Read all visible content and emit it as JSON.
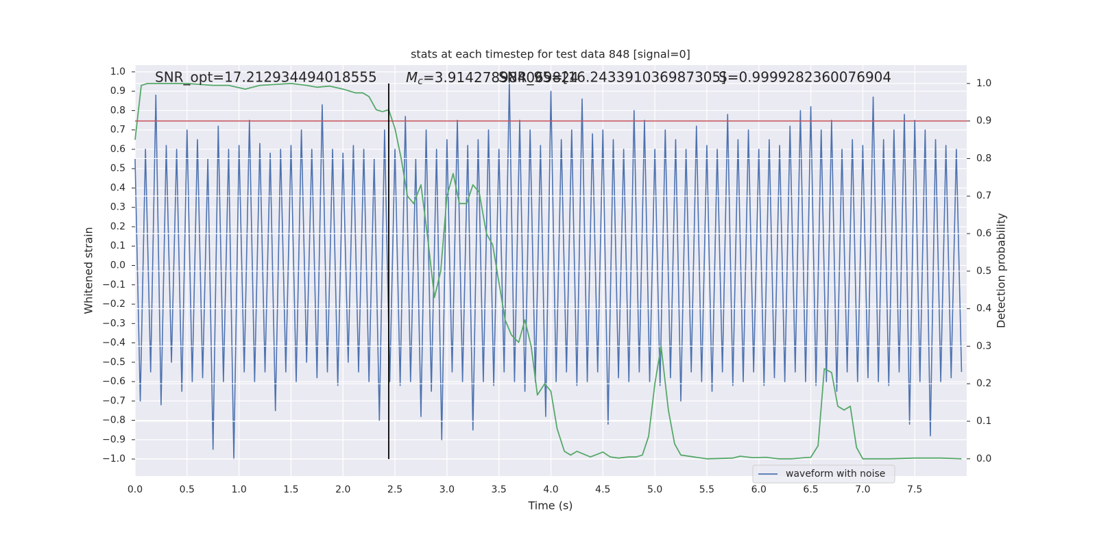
{
  "chart_data": {
    "type": "line",
    "title": "stats at each timestep for test data 848 [signal=0]",
    "xlabel": "Time (s)",
    "ylabel": "Whitened strain",
    "y2label": "Detection probability",
    "annotations": [
      "SNR_opt=17.212934494018555",
      {
        "italic": "M",
        "sub": "c",
        "rest": "=3.914278984069824"
      },
      "SNR_95=[16.243391036987305]",
      "S=0.9999282360076904"
    ],
    "xlim": [
      0,
      8
    ],
    "ylim": [
      -1.088,
      1.035
    ],
    "y2lim": [
      -0.046,
      1.049
    ],
    "grid": true,
    "legend": "lower right",
    "background": "#eaeaf2",
    "xticks": [
      {
        "value": 0,
        "label": "0.0"
      },
      {
        "value": 0.5,
        "label": "0.5"
      },
      {
        "value": 1,
        "label": "1.0"
      },
      {
        "value": 1.5,
        "label": "1.5"
      },
      {
        "value": 2,
        "label": "2.0"
      },
      {
        "value": 2.5,
        "label": "2.5"
      },
      {
        "value": 3,
        "label": "3.0"
      },
      {
        "value": 3.5,
        "label": "3.5"
      },
      {
        "value": 4,
        "label": "4.0"
      },
      {
        "value": 4.5,
        "label": "4.5"
      },
      {
        "value": 5,
        "label": "5.0"
      },
      {
        "value": 5.5,
        "label": "5.5"
      },
      {
        "value": 6,
        "label": "6.0"
      },
      {
        "value": 6.5,
        "label": "6.5"
      },
      {
        "value": 7,
        "label": "7.0"
      },
      {
        "value": 7.5,
        "label": "7.5"
      }
    ],
    "yticks": [
      {
        "value": -1,
        "label": "−1.0"
      },
      {
        "value": -0.9,
        "label": "−0.9"
      },
      {
        "value": -0.8,
        "label": "−0.8"
      },
      {
        "value": -0.7,
        "label": "−0.7"
      },
      {
        "value": -0.6,
        "label": "−0.6"
      },
      {
        "value": -0.5,
        "label": "−0.5"
      },
      {
        "value": -0.4,
        "label": "−0.4"
      },
      {
        "value": -0.3,
        "label": "−0.3"
      },
      {
        "value": -0.2,
        "label": "−0.2"
      },
      {
        "value": -0.1,
        "label": "−0.1"
      },
      {
        "value": 0,
        "label": "0.0"
      },
      {
        "value": 0.1,
        "label": "0.1"
      },
      {
        "value": 0.2,
        "label": "0.2"
      },
      {
        "value": 0.3,
        "label": "0.3"
      },
      {
        "value": 0.4,
        "label": "0.4"
      },
      {
        "value": 0.5,
        "label": "0.5"
      },
      {
        "value": 0.6,
        "label": "0.6"
      },
      {
        "value": 0.7,
        "label": "0.7"
      },
      {
        "value": 0.8,
        "label": "0.8"
      },
      {
        "value": 0.9,
        "label": "0.9"
      },
      {
        "value": 1,
        "label": "1.0"
      }
    ],
    "y2ticks": [
      {
        "value": 0,
        "label": "0.0"
      },
      {
        "value": 0.1,
        "label": "0.1"
      },
      {
        "value": 0.2,
        "label": "0.2"
      },
      {
        "value": 0.3,
        "label": "0.3"
      },
      {
        "value": 0.4,
        "label": "0.4"
      },
      {
        "value": 0.5,
        "label": "0.5"
      },
      {
        "value": 0.6,
        "label": "0.6"
      },
      {
        "value": 0.7,
        "label": "0.7"
      },
      {
        "value": 0.8,
        "label": "0.8"
      },
      {
        "value": 0.9,
        "label": "0.9"
      },
      {
        "value": 1,
        "label": "1.0"
      }
    ],
    "hlines": [
      {
        "y": 0.9,
        "axis": "y2",
        "color": "#c44e52"
      }
    ],
    "vlines": [
      {
        "x": 2.44,
        "ymin": -1.0,
        "ymax": 0.94,
        "color": "#000000"
      }
    ],
    "series": [
      {
        "name": "waveform with noise",
        "color": "#4c72b0",
        "x": [
          0,
          0.05,
          0.1,
          0.15,
          0.2,
          0.25,
          0.3,
          0.35,
          0.4,
          0.45,
          0.5,
          0.55,
          0.6,
          0.65,
          0.7,
          0.75,
          0.8,
          0.85,
          0.9,
          0.95,
          1,
          1.05,
          1.1,
          1.15,
          1.2,
          1.25,
          1.3,
          1.35,
          1.4,
          1.45,
          1.5,
          1.55,
          1.6,
          1.65,
          1.7,
          1.75,
          1.8,
          1.85,
          1.9,
          1.95,
          2,
          2.05,
          2.1,
          2.15,
          2.2,
          2.25,
          2.3,
          2.35,
          2.4,
          2.45,
          2.5,
          2.55,
          2.6,
          2.65,
          2.7,
          2.75,
          2.8,
          2.85,
          2.9,
          2.95,
          3,
          3.05,
          3.1,
          3.15,
          3.2,
          3.25,
          3.3,
          3.35,
          3.4,
          3.45,
          3.5,
          3.55,
          3.6,
          3.65,
          3.7,
          3.75,
          3.8,
          3.85,
          3.9,
          3.95,
          4,
          4.05,
          4.1,
          4.15,
          4.2,
          4.25,
          4.3,
          4.35,
          4.4,
          4.45,
          4.5,
          4.55,
          4.6,
          4.65,
          4.7,
          4.75,
          4.8,
          4.85,
          4.9,
          4.95,
          5,
          5.05,
          5.1,
          5.15,
          5.2,
          5.25,
          5.3,
          5.35,
          5.4,
          5.45,
          5.5,
          5.55,
          5.6,
          5.65,
          5.7,
          5.75,
          5.8,
          5.85,
          5.9,
          5.95,
          6,
          6.05,
          6.1,
          6.15,
          6.2,
          6.25,
          6.3,
          6.35,
          6.4,
          6.45,
          6.5,
          6.55,
          6.6,
          6.65,
          6.7,
          6.75,
          6.8,
          6.85,
          6.9,
          6.95,
          7,
          7.05,
          7.1,
          7.15,
          7.2,
          7.25,
          7.3,
          7.35,
          7.4,
          7.45,
          7.5,
          7.55,
          7.6,
          7.65,
          7.7,
          7.75,
          7.8,
          7.85,
          7.9,
          7.95
        ],
        "values": [
          0.55,
          -0.7,
          0.6,
          -0.55,
          0.88,
          -0.72,
          0.62,
          -0.5,
          0.6,
          -0.65,
          0.7,
          -0.6,
          0.65,
          -0.58,
          0.55,
          -0.95,
          0.72,
          -0.6,
          0.6,
          -1.0,
          0.62,
          -0.55,
          0.75,
          -0.6,
          0.63,
          -0.55,
          0.58,
          -0.75,
          0.6,
          -0.55,
          0.62,
          -0.6,
          0.7,
          -0.5,
          0.6,
          -0.58,
          0.83,
          -0.55,
          0.6,
          -0.62,
          0.58,
          -0.5,
          0.62,
          -0.55,
          0.6,
          -0.6,
          0.55,
          -0.8,
          0.7,
          -0.6,
          0.6,
          -0.62,
          0.77,
          -0.6,
          0.55,
          -0.78,
          0.7,
          -0.65,
          0.6,
          -0.9,
          0.65,
          -0.55,
          0.75,
          -0.6,
          0.62,
          -0.85,
          0.65,
          -0.6,
          0.7,
          -0.62,
          0.6,
          -0.55,
          0.95,
          -0.6,
          0.75,
          -0.65,
          0.7,
          -0.6,
          0.62,
          -0.78,
          0.9,
          -0.6,
          0.65,
          -0.55,
          0.7,
          -0.62,
          0.86,
          -0.6,
          0.68,
          -0.55,
          0.7,
          -0.82,
          0.65,
          -0.58,
          0.6,
          -0.6,
          0.8,
          -0.55,
          0.75,
          -0.6,
          0.6,
          -0.62,
          0.7,
          -0.58,
          0.65,
          -0.7,
          0.6,
          -0.55,
          0.72,
          -0.6,
          0.62,
          -0.65,
          0.6,
          -0.55,
          0.78,
          -0.62,
          0.65,
          -0.6,
          0.7,
          -0.55,
          0.6,
          -0.62,
          0.65,
          -0.58,
          0.62,
          -0.6,
          0.72,
          -0.55,
          0.8,
          -0.6,
          0.82,
          -0.62,
          0.7,
          -0.6,
          0.75,
          -0.65,
          0.6,
          -0.55,
          0.65,
          -0.6,
          0.62,
          -0.58,
          0.87,
          -0.6,
          0.65,
          -0.62,
          0.7,
          -0.55,
          0.78,
          -0.82,
          0.75,
          -0.6,
          0.7,
          -0.88,
          0.65,
          -0.6,
          0.62,
          -0.58,
          0.6,
          -0.55
        ]
      },
      {
        "color": "#55a868",
        "axis": "y2",
        "x": [
          0,
          0.06,
          0.12,
          0.5,
          0.75,
          0.9,
          1.06,
          1.2,
          1.5,
          1.65,
          1.75,
          1.87,
          2,
          2.12,
          2.19,
          2.25,
          2.32,
          2.38,
          2.44,
          2.5,
          2.56,
          2.62,
          2.68,
          2.75,
          2.81,
          2.88,
          2.94,
          3,
          3.06,
          3.12,
          3.19,
          3.25,
          3.31,
          3.38,
          3.44,
          3.5,
          3.56,
          3.62,
          3.69,
          3.75,
          3.81,
          3.87,
          3.94,
          4,
          4.06,
          4.13,
          4.19,
          4.25,
          4.38,
          4.5,
          4.57,
          4.65,
          4.75,
          4.82,
          4.88,
          4.94,
          5,
          5.06,
          5.13,
          5.19,
          5.25,
          5.5,
          5.75,
          5.82,
          5.94,
          6.07,
          6.19,
          6.32,
          6.44,
          6.5,
          6.57,
          6.63,
          6.7,
          6.76,
          6.82,
          6.88,
          6.94,
          7,
          7.25,
          7.5,
          7.75,
          7.95
        ],
        "values": [
          0.85,
          0.995,
          1.0,
          1.0,
          0.995,
          0.995,
          0.985,
          0.995,
          1.0,
          0.995,
          0.99,
          0.993,
          0.985,
          0.975,
          0.975,
          0.965,
          0.93,
          0.925,
          0.93,
          0.88,
          0.8,
          0.7,
          0.68,
          0.73,
          0.6,
          0.43,
          0.5,
          0.7,
          0.76,
          0.68,
          0.68,
          0.73,
          0.71,
          0.6,
          0.57,
          0.47,
          0.37,
          0.33,
          0.31,
          0.37,
          0.3,
          0.17,
          0.2,
          0.18,
          0.08,
          0.02,
          0.01,
          0.02,
          0.005,
          0.018,
          0.005,
          0.002,
          0.005,
          0.005,
          0.01,
          0.06,
          0.2,
          0.3,
          0.13,
          0.04,
          0.01,
          0.0,
          0.002,
          0.007,
          0.003,
          0.004,
          0.0,
          0.0,
          0.003,
          0.004,
          0.035,
          0.24,
          0.23,
          0.14,
          0.13,
          0.14,
          0.03,
          0.0,
          0.0,
          0.002,
          0.002,
          0.0
        ]
      }
    ]
  }
}
